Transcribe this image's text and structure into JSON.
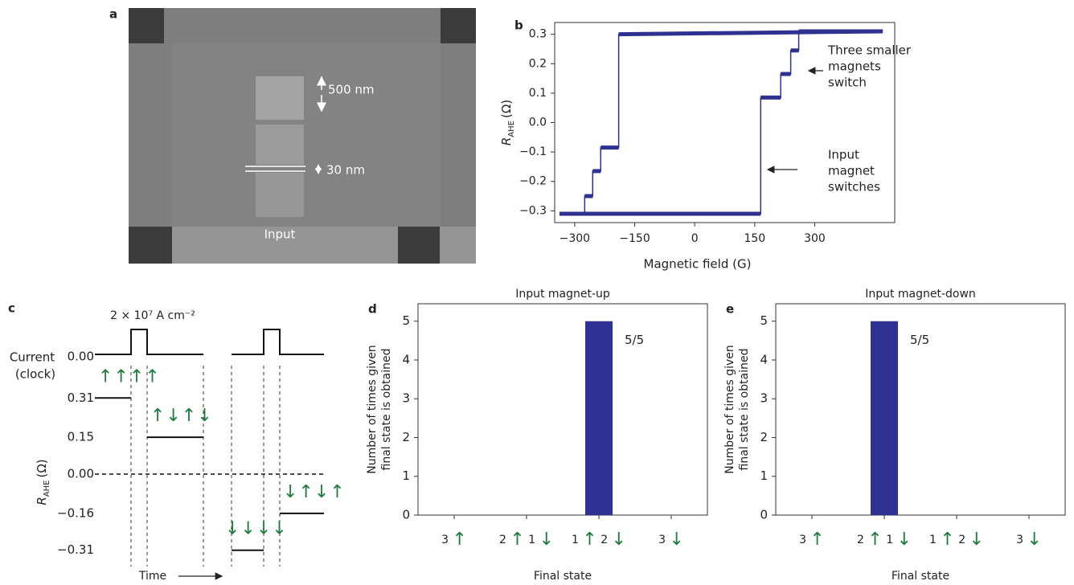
{
  "figure_panel_a": {
    "label": "a",
    "scale_long": "500 nm",
    "scale_short": "30 nm",
    "input": "Input"
  },
  "chart_data": [
    {
      "type": "line",
      "label": "b",
      "xlabel": "Magnetic field (G)",
      "ylabel": {
        "main": "R",
        "sub": "AHE",
        "unit": "(Ω)"
      },
      "xlim": [
        -350,
        500
      ],
      "ylim": [
        -0.34,
        0.34
      ],
      "xticks": [
        {
          "value": -300,
          "label": "−300"
        },
        {
          "value": -150,
          "label": "−150"
        },
        0,
        150,
        300
      ],
      "yticks": [
        0.3,
        0.2,
        0.1,
        {
          "value": 0,
          "label": "0.0"
        },
        {
          "value": -0.1,
          "label": "−0.1"
        },
        {
          "value": -0.2,
          "label": "−0.2"
        },
        {
          "value": -0.3,
          "label": "−0.3"
        }
      ],
      "series": [
        {
          "color": "#2e3192",
          "x": [
            -338,
            165,
            165,
            215,
            215,
            240,
            240,
            260,
            260,
            470
          ],
          "values": [
            -0.31,
            -0.31,
            0.085,
            0.085,
            0.165,
            0.165,
            0.245,
            0.245,
            0.31,
            0.31
          ]
        },
        {
          "color": "#2e3192",
          "x": [
            470,
            -190,
            -190,
            -235,
            -235,
            -255,
            -255,
            -275,
            -275,
            -338
          ],
          "values": [
            0.31,
            0.3,
            -0.085,
            -0.085,
            -0.165,
            -0.165,
            -0.25,
            -0.25,
            -0.31,
            -0.31
          ]
        }
      ],
      "annotations": [
        [
          "Three smaller",
          "magnets",
          "switch"
        ],
        [
          "Input",
          "magnet",
          "switches"
        ]
      ]
    },
    {
      "type": "step",
      "label": "c",
      "pulse_label": "2 × 10⁷ A cm⁻²",
      "current_label": [
        "Current",
        "(clock)"
      ],
      "current_ticks": [
        {
          "value": 0,
          "label": "0.00"
        }
      ],
      "ylabel": {
        "main": "R",
        "sub": "AHE",
        "unit": "(Ω)"
      },
      "ylim": [
        -0.36,
        0.36
      ],
      "yticks": [
        0.31,
        0.15,
        {
          "value": 0,
          "label": "0.00"
        },
        {
          "value": -0.16,
          "label": "−0.16"
        },
        {
          "value": -0.31,
          "label": "−0.31"
        }
      ],
      "values": [
        0.31,
        0.15,
        -0.31,
        -0.16
      ],
      "states": [
        "↑↑↑↑",
        "↑↓↑↓",
        "↓↓↓↓",
        "↓↑↓↑"
      ],
      "xlabel": "Time"
    },
    {
      "type": "bar",
      "label": "d",
      "title": "Input magnet-up",
      "xlabel": "Final state",
      "ylabel": [
        "Number of  times given",
        "final state is obtained"
      ],
      "categories": [
        "3 ↑",
        "2 ↑ 1 ↓",
        "1 ↑ 2 ↓",
        "3 ↓"
      ],
      "values": [
        0,
        0,
        5,
        0
      ],
      "value_labels": [
        null,
        null,
        "5/5",
        null
      ],
      "color": "#2e3192",
      "ylim": [
        0,
        5.45
      ],
      "yticks": [
        0,
        1,
        2,
        3,
        4,
        5
      ]
    },
    {
      "type": "bar",
      "label": "e",
      "title": "Input magnet-down",
      "xlabel": "Final state",
      "ylabel": [
        "Number of  times given",
        "final state is obtained"
      ],
      "categories": [
        "3 ↑",
        "2 ↑ 1 ↓",
        "1 ↑ 2 ↓",
        "3 ↓"
      ],
      "values": [
        0,
        5,
        0,
        0
      ],
      "value_labels": [
        null,
        "5/5",
        null,
        null
      ],
      "color": "#2e3192",
      "ylim": [
        0,
        5.45
      ],
      "yticks": [
        0,
        1,
        2,
        3,
        4,
        5
      ]
    }
  ]
}
